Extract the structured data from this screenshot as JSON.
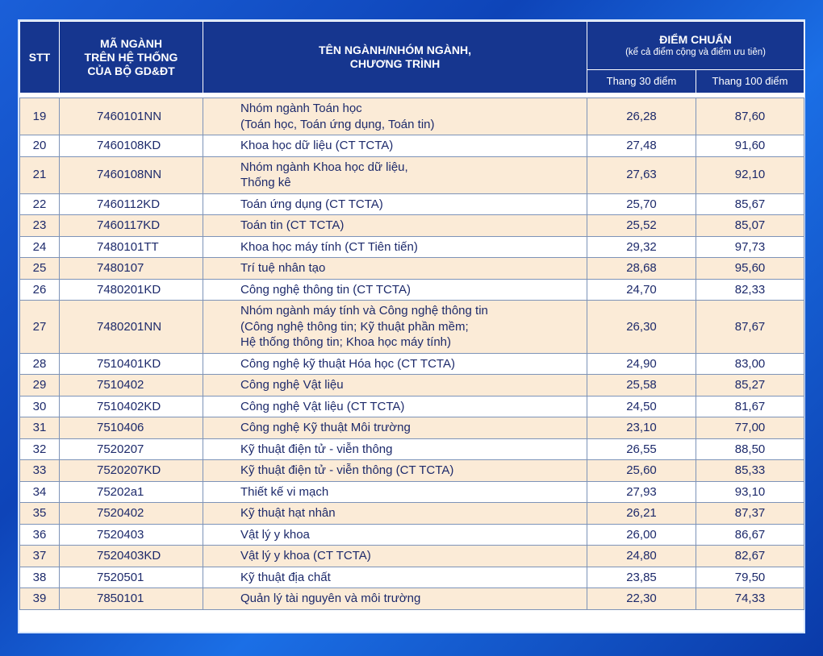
{
  "header": {
    "stt": "STT",
    "code_line1": "MÃ NGÀNH",
    "code_line2": "TRÊN HỆ THỐNG",
    "code_line3": "CỦA BỘ GD&ĐT",
    "name_line1": "TÊN NGÀNH/NHÓM NGÀNH,",
    "name_line2": "CHƯƠNG TRÌNH",
    "score_title": "ĐIỂM CHUẨN",
    "score_sub": "(kể cả điểm cộng và điểm ưu tiên)",
    "scale30": "Thang 30 điểm",
    "scale100": "Thang 100 điểm"
  },
  "rows": [
    {
      "stt": "19",
      "code": "7460101NN",
      "name": "Nhóm ngành Toán học\n(Toán học, Toán ứng dụng, Toán tin)",
      "s30": "26,28",
      "s100": "87,60"
    },
    {
      "stt": "20",
      "code": "7460108KD",
      "name": "Khoa học dữ liệu (CT TCTA)",
      "s30": "27,48",
      "s100": "91,60"
    },
    {
      "stt": "21",
      "code": "7460108NN",
      "name": "Nhóm ngành Khoa học dữ liệu,\nThống kê",
      "s30": "27,63",
      "s100": "92,10"
    },
    {
      "stt": "22",
      "code": "7460112KD",
      "name": "Toán ứng dụng (CT TCTA)",
      "s30": "25,70",
      "s100": "85,67"
    },
    {
      "stt": "23",
      "code": "7460117KD",
      "name": "Toán tin (CT TCTA)",
      "s30": "25,52",
      "s100": "85,07"
    },
    {
      "stt": "24",
      "code": "7480101TT",
      "name": "Khoa học máy tính (CT Tiên tiến)",
      "s30": "29,32",
      "s100": "97,73"
    },
    {
      "stt": "25",
      "code": "7480107",
      "name": "Trí tuệ nhân tạo",
      "s30": "28,68",
      "s100": "95,60"
    },
    {
      "stt": "26",
      "code": "7480201KD",
      "name": "Công nghệ thông tin (CT TCTA)",
      "s30": "24,70",
      "s100": "82,33"
    },
    {
      "stt": "27",
      "code": "7480201NN",
      "name": "Nhóm ngành máy tính và Công nghệ thông tin\n(Công nghệ thông tin; Kỹ thuật phần mềm;\nHệ thống thông tin; Khoa học máy tính)",
      "s30": "26,30",
      "s100": "87,67"
    },
    {
      "stt": "28",
      "code": "7510401KD",
      "name": "Công nghệ kỹ thuật Hóa học (CT TCTA)",
      "s30": "24,90",
      "s100": "83,00"
    },
    {
      "stt": "29",
      "code": "7510402",
      "name": "Công nghệ Vật liệu",
      "s30": "25,58",
      "s100": "85,27"
    },
    {
      "stt": "30",
      "code": "7510402KD",
      "name": "Công nghệ Vật liệu (CT TCTA)",
      "s30": "24,50",
      "s100": "81,67"
    },
    {
      "stt": "31",
      "code": "7510406",
      "name": "Công nghệ Kỹ thuật Môi trường",
      "s30": "23,10",
      "s100": "77,00"
    },
    {
      "stt": "32",
      "code": "7520207",
      "name": "Kỹ thuật điện tử - viễn thông",
      "s30": "26,55",
      "s100": "88,50"
    },
    {
      "stt": "33",
      "code": "7520207KD",
      "name": "Kỹ thuật điện tử - viễn thông (CT TCTA)",
      "s30": "25,60",
      "s100": "85,33"
    },
    {
      "stt": "34",
      "code": "75202a1",
      "name": "Thiết kế vi mạch",
      "s30": "27,93",
      "s100": "93,10"
    },
    {
      "stt": "35",
      "code": "7520402",
      "name": "Kỹ thuật hạt nhân",
      "s30": "26,21",
      "s100": "87,37"
    },
    {
      "stt": "36",
      "code": "7520403",
      "name": "Vật lý y khoa",
      "s30": "26,00",
      "s100": "86,67"
    },
    {
      "stt": "37",
      "code": "7520403KD",
      "name": "Vật lý y khoa (CT TCTA)",
      "s30": "24,80",
      "s100": "82,67"
    },
    {
      "stt": "38",
      "code": "7520501",
      "name": "Kỹ thuật địa chất",
      "s30": "23,85",
      "s100": "79,50"
    },
    {
      "stt": "39",
      "code": "7850101",
      "name": "Quản lý tài nguyên và môi trường",
      "s30": "22,30",
      "s100": "74,33"
    }
  ]
}
